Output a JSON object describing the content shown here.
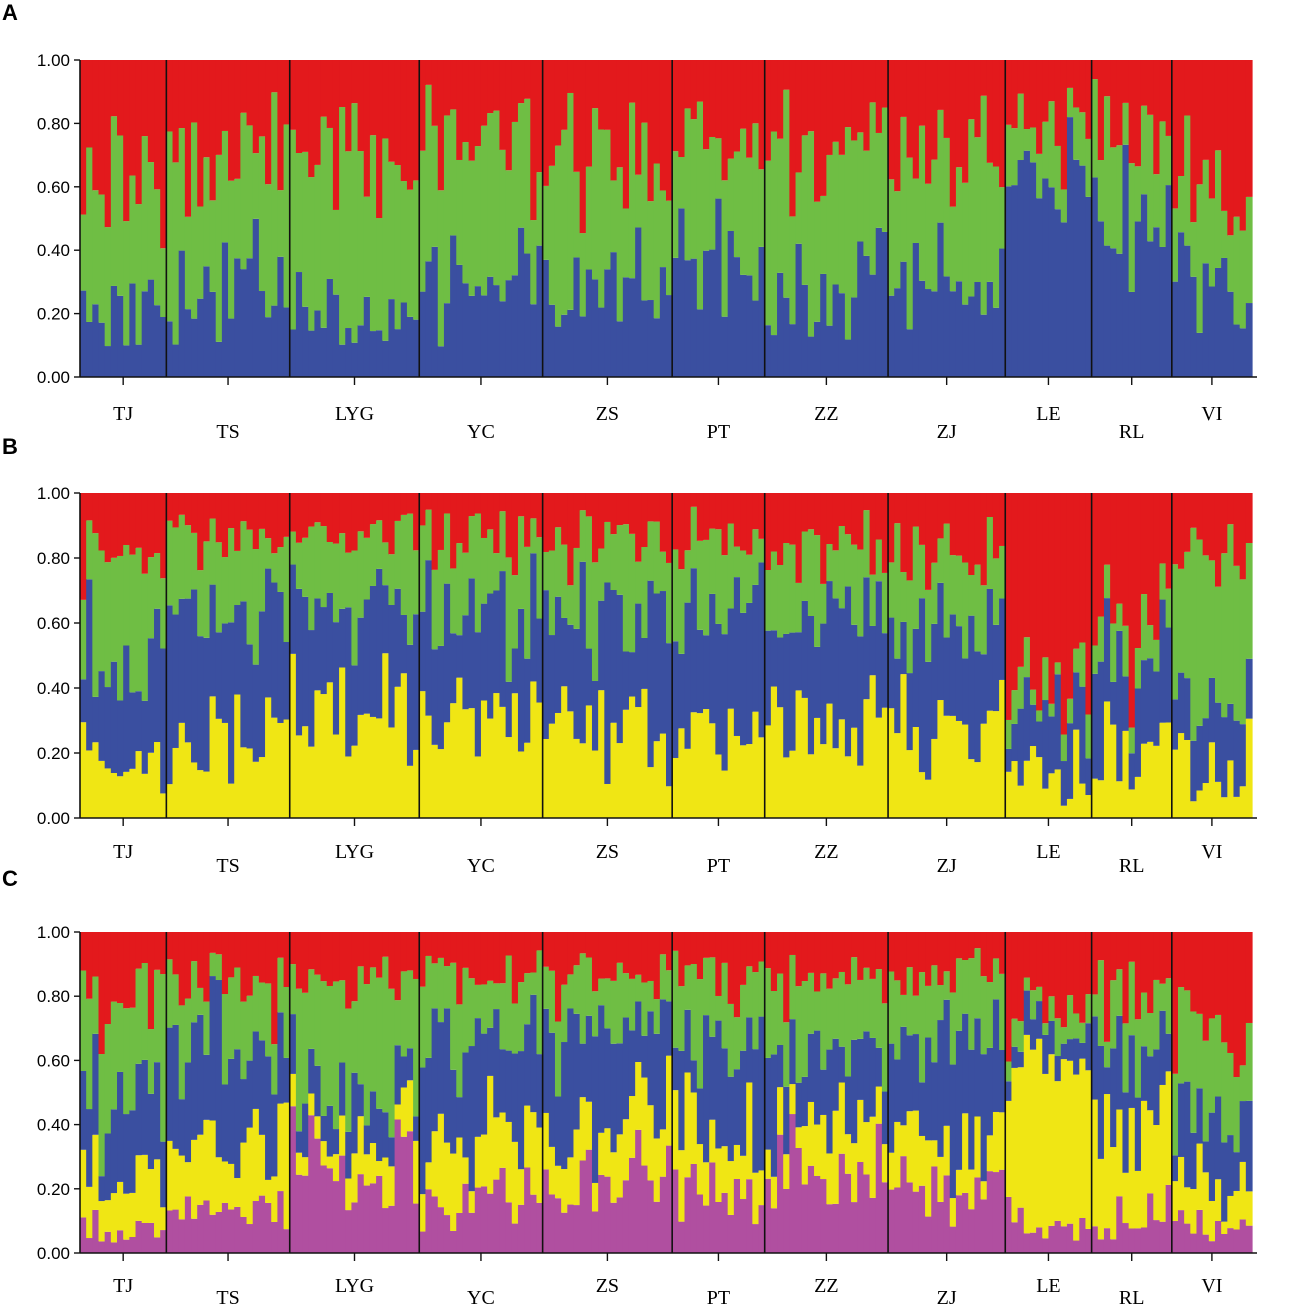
{
  "panels": [
    {
      "letter": "A"
    },
    {
      "letter": "B"
    },
    {
      "letter": "C"
    }
  ],
  "chart_data": [
    {
      "type": "bar",
      "subtype": "stacked-structure-plot",
      "panel": "A",
      "K": 3,
      "ylim": [
        0,
        1
      ],
      "yticks": [
        "0.00",
        "0.20",
        "0.40",
        "0.60",
        "0.80",
        "1.00"
      ],
      "populations": [
        "TJ",
        "TS",
        "LYG",
        "YC",
        "ZS",
        "PT",
        "ZZ",
        "ZJ",
        "LE",
        "RL",
        "VI"
      ],
      "population_sizes": [
        14,
        20,
        21,
        20,
        21,
        15,
        20,
        19,
        14,
        13,
        13
      ],
      "cluster_colors": [
        "#3a4fa0",
        "#6fbe44",
        "#e3191c"
      ],
      "approx_mean_membership": {
        "blue": [
          0.22,
          0.3,
          0.2,
          0.28,
          0.3,
          0.32,
          0.28,
          0.28,
          0.68,
          0.55,
          0.28
        ],
        "green": [
          0.4,
          0.45,
          0.48,
          0.45,
          0.42,
          0.4,
          0.48,
          0.45,
          0.15,
          0.25,
          0.3
        ],
        "red": [
          0.38,
          0.25,
          0.32,
          0.27,
          0.28,
          0.28,
          0.24,
          0.27,
          0.17,
          0.2,
          0.42
        ]
      }
    },
    {
      "type": "bar",
      "subtype": "stacked-structure-plot",
      "panel": "B",
      "K": 4,
      "ylim": [
        0,
        1
      ],
      "yticks": [
        "0.00",
        "0.20",
        "0.40",
        "0.60",
        "0.80",
        "1.00"
      ],
      "populations": [
        "TJ",
        "TS",
        "LYG",
        "YC",
        "ZS",
        "PT",
        "ZZ",
        "ZJ",
        "LE",
        "RL",
        "VI"
      ],
      "population_sizes": [
        14,
        20,
        21,
        20,
        21,
        15,
        20,
        19,
        14,
        13,
        13
      ],
      "cluster_colors": [
        "#f0e614",
        "#3a4fa0",
        "#6fbe44",
        "#e3191c"
      ],
      "approx_mean_membership": {
        "yellow": [
          0.18,
          0.25,
          0.35,
          0.28,
          0.25,
          0.28,
          0.3,
          0.28,
          0.12,
          0.2,
          0.16
        ],
        "blue": [
          0.3,
          0.38,
          0.3,
          0.35,
          0.38,
          0.35,
          0.32,
          0.32,
          0.2,
          0.25,
          0.18
        ],
        "green": [
          0.35,
          0.22,
          0.22,
          0.22,
          0.22,
          0.22,
          0.22,
          0.22,
          0.1,
          0.15,
          0.44
        ],
        "red": [
          0.17,
          0.15,
          0.13,
          0.15,
          0.15,
          0.15,
          0.16,
          0.18,
          0.58,
          0.4,
          0.22
        ]
      }
    },
    {
      "type": "bar",
      "subtype": "stacked-structure-plot",
      "panel": "C",
      "K": 5,
      "ylim": [
        0,
        1
      ],
      "yticks": [
        "0.00",
        "0.20",
        "0.40",
        "0.60",
        "0.80",
        "1.00"
      ],
      "populations": [
        "TJ",
        "TS",
        "LYG",
        "YC",
        "ZS",
        "PT",
        "ZZ",
        "ZJ",
        "LE",
        "RL",
        "VI"
      ],
      "population_sizes": [
        14,
        20,
        21,
        20,
        21,
        15,
        20,
        19,
        14,
        13,
        13
      ],
      "cluster_colors": [
        "#b04fa0",
        "#f0e614",
        "#3a4fa0",
        "#6fbe44",
        "#e3191c"
      ],
      "approx_mean_membership": {
        "purple": [
          0.08,
          0.15,
          0.28,
          0.18,
          0.22,
          0.18,
          0.25,
          0.2,
          0.08,
          0.1,
          0.08
        ],
        "yellow": [
          0.15,
          0.2,
          0.12,
          0.18,
          0.2,
          0.18,
          0.15,
          0.15,
          0.55,
          0.35,
          0.12
        ],
        "blue": [
          0.22,
          0.3,
          0.12,
          0.3,
          0.3,
          0.28,
          0.25,
          0.28,
          0.1,
          0.2,
          0.22
        ],
        "green": [
          0.3,
          0.2,
          0.35,
          0.2,
          0.15,
          0.2,
          0.2,
          0.22,
          0.07,
          0.15,
          0.25
        ],
        "red": [
          0.25,
          0.15,
          0.13,
          0.14,
          0.13,
          0.16,
          0.15,
          0.15,
          0.2,
          0.2,
          0.33
        ]
      }
    }
  ]
}
